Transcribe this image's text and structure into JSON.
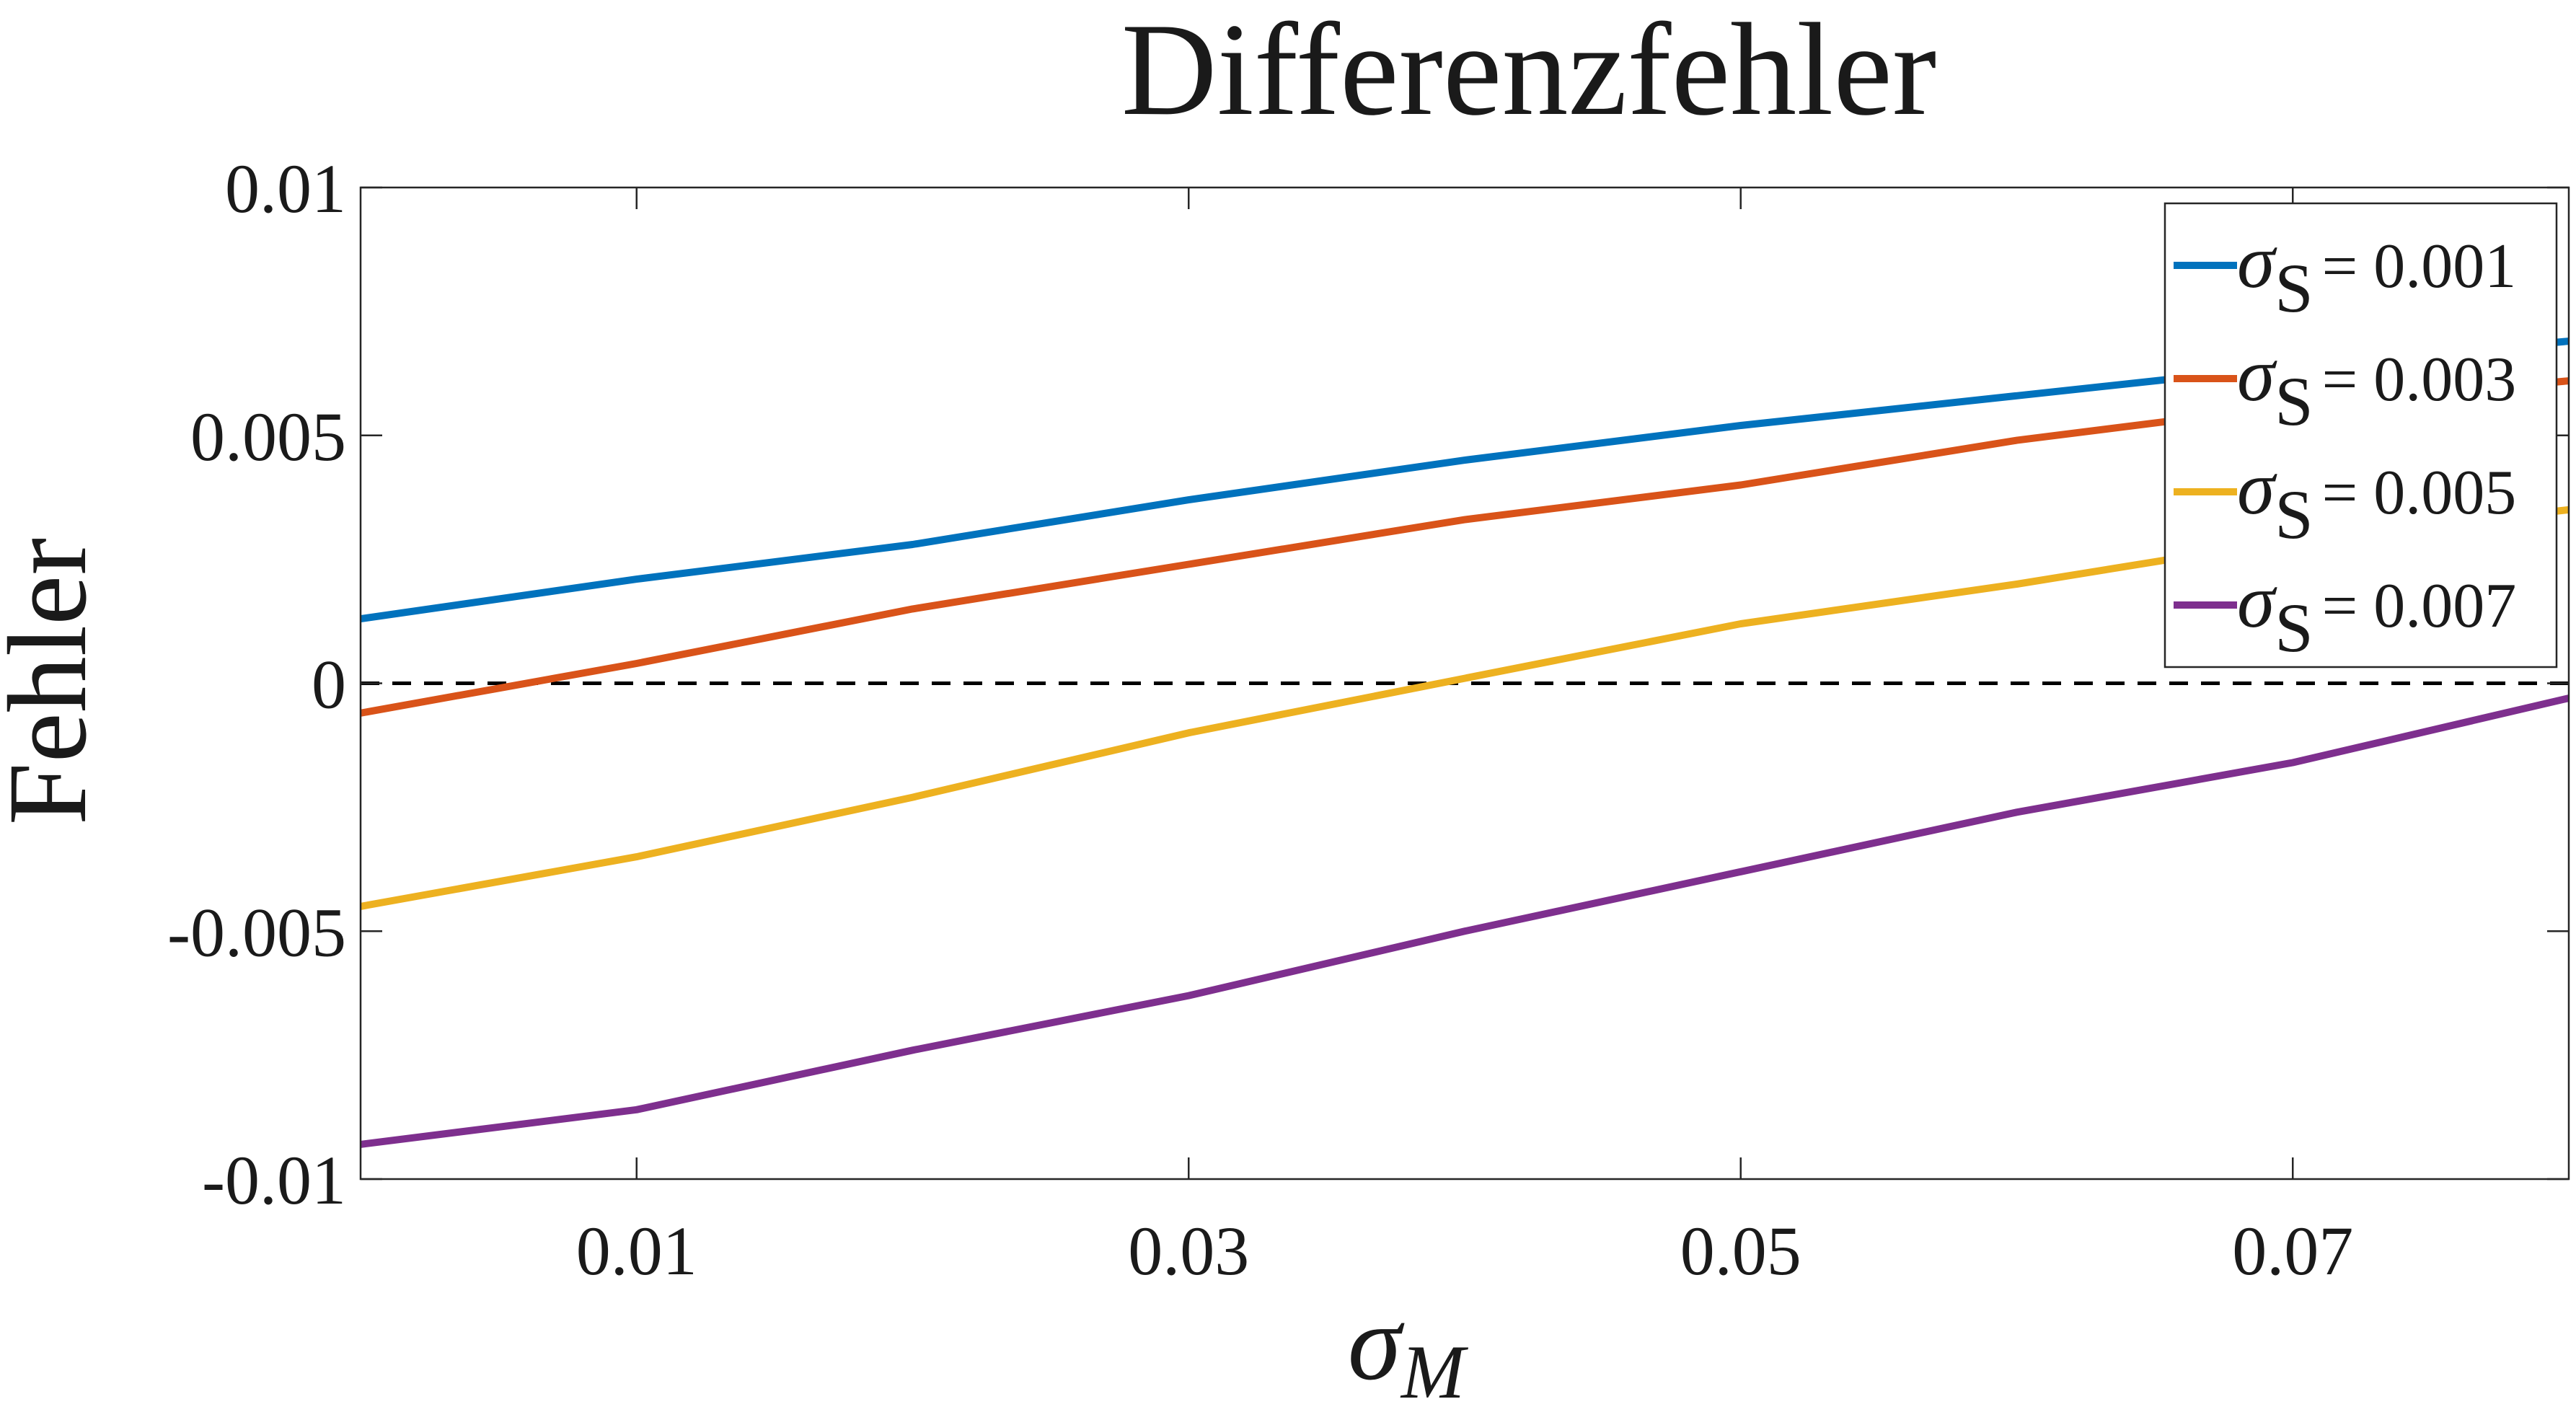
{
  "chart_data": {
    "type": "line",
    "title": "Differenzfehler",
    "xlabel": {
      "symbol": "σ",
      "subscript": "M"
    },
    "ylabel": "Fehler",
    "xlim": [
      0,
      0.08
    ],
    "ylim": [
      -0.01,
      0.01
    ],
    "xticks": [
      0.01,
      0.03,
      0.05,
      0.07
    ],
    "xtick_labels": [
      "0.01",
      "0.03",
      "0.05",
      "0.07"
    ],
    "yticks": [
      0.01,
      0.005,
      0,
      -0.005,
      -0.01
    ],
    "ytick_labels": [
      "0.01",
      "0.005",
      "0",
      "-0.005",
      "-0.01"
    ],
    "grid": false,
    "legend_position": "top-right",
    "reference_line": {
      "y": 0,
      "style": "dashed",
      "color": "#000000"
    },
    "x": [
      0,
      0.01,
      0.02,
      0.03,
      0.04,
      0.05,
      0.06,
      0.07,
      0.08
    ],
    "series": [
      {
        "name": "σ_S = 0.001",
        "symbol": "σ",
        "subscript": "S",
        "value_text": "= 0.001",
        "color": "#0072BD",
        "values": [
          0.0013,
          0.0021,
          0.0028,
          0.0037,
          0.0045,
          0.0052,
          0.0058,
          0.0064,
          0.0069
        ]
      },
      {
        "name": "σ_S = 0.003",
        "symbol": "σ",
        "subscript": "S",
        "value_text": "= 0.003",
        "color": "#D95319",
        "values": [
          -0.0006,
          0.0004,
          0.0015,
          0.0024,
          0.0033,
          0.004,
          0.0049,
          0.0056,
          0.0061
        ]
      },
      {
        "name": "σ_S = 0.005",
        "symbol": "σ",
        "subscript": "S",
        "value_text": "= 0.005",
        "color": "#EDB120",
        "values": [
          -0.0045,
          -0.0035,
          -0.0023,
          -0.001,
          0.0001,
          0.0012,
          0.002,
          0.0029,
          0.0035
        ]
      },
      {
        "name": "σ_S = 0.007",
        "symbol": "σ",
        "subscript": "S",
        "value_text": "= 0.007",
        "color": "#7E2F8E",
        "values": [
          -0.0093,
          -0.0086,
          -0.0074,
          -0.0063,
          -0.005,
          -0.0038,
          -0.0026,
          -0.0016,
          -0.0003
        ]
      }
    ]
  }
}
